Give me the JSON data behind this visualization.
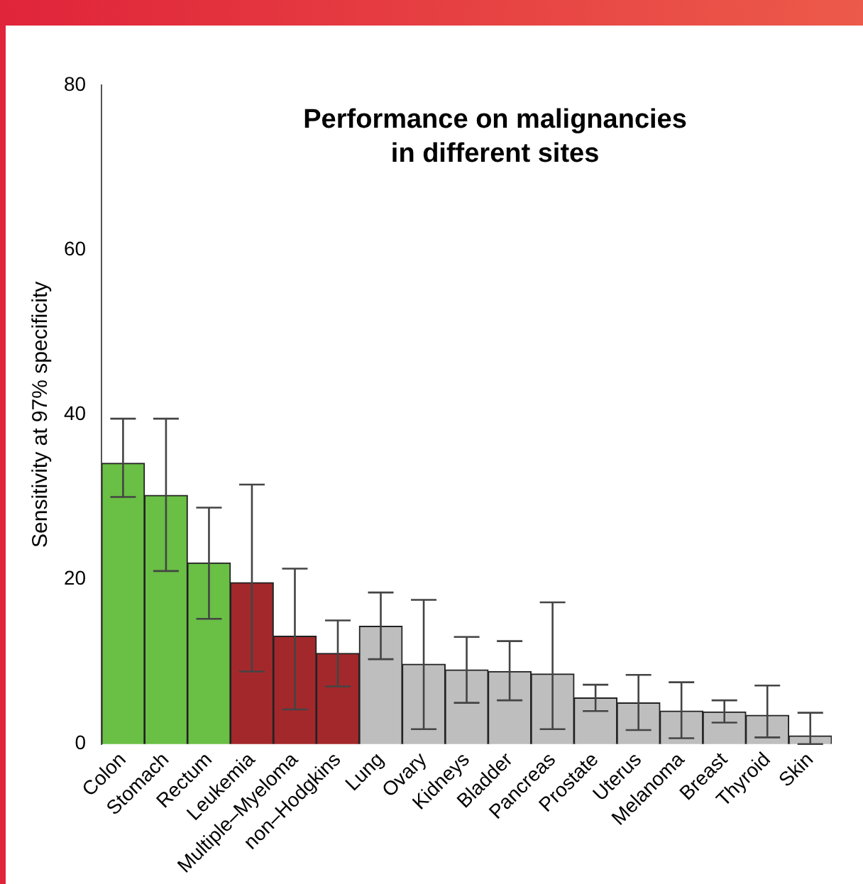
{
  "chart_data": {
    "type": "bar",
    "title": "Performance on malignancies\nin different sites",
    "ylabel": "Sensitivity at 97% specificity",
    "categories": [
      "Colon",
      "Stomach",
      "Rectum",
      "Leukemia",
      "Multiple–Myeloma",
      "non–Hodgkins",
      "Lung",
      "Ovary",
      "Kidneys",
      "Bladder",
      "Pancreas",
      "Prostate",
      "Uterus",
      "Melanoma",
      "Breast",
      "Thyroid",
      "Skin"
    ],
    "values": [
      34.1,
      30.2,
      22,
      19.6,
      13.1,
      11,
      14.3,
      9.7,
      9,
      8.8,
      8.5,
      5.6,
      5,
      4,
      3.9,
      3.5,
      1
    ],
    "errors": [
      [
        30,
        39.5
      ],
      [
        21,
        39.5
      ],
      [
        15.2,
        28.7
      ],
      [
        8.8,
        31.5
      ],
      [
        4.2,
        21.3
      ],
      [
        7,
        15
      ],
      [
        10.3,
        18.4
      ],
      [
        1.8,
        17.5
      ],
      [
        5,
        13
      ],
      [
        5.3,
        12.5
      ],
      [
        1.8,
        17.2
      ],
      [
        4,
        7.2
      ],
      [
        1.7,
        8.4
      ],
      [
        0.7,
        7.5
      ],
      [
        2.6,
        5.3
      ],
      [
        0.8,
        7.1
      ],
      [
        0,
        3.8
      ]
    ],
    "colors": [
      "#6abf45",
      "#6abf45",
      "#6abf45",
      "#a3282b",
      "#a3282b",
      "#a3282b",
      "#bebebe",
      "#bebebe",
      "#bebebe",
      "#bebebe",
      "#bebebe",
      "#bebebe",
      "#bebebe",
      "#bebebe",
      "#bebebe",
      "#bebebe",
      "#bebebe"
    ],
    "ylim": [
      0,
      80
    ],
    "yticks": [
      0,
      20,
      40,
      60,
      80
    ],
    "grid": false,
    "legend": false
  }
}
